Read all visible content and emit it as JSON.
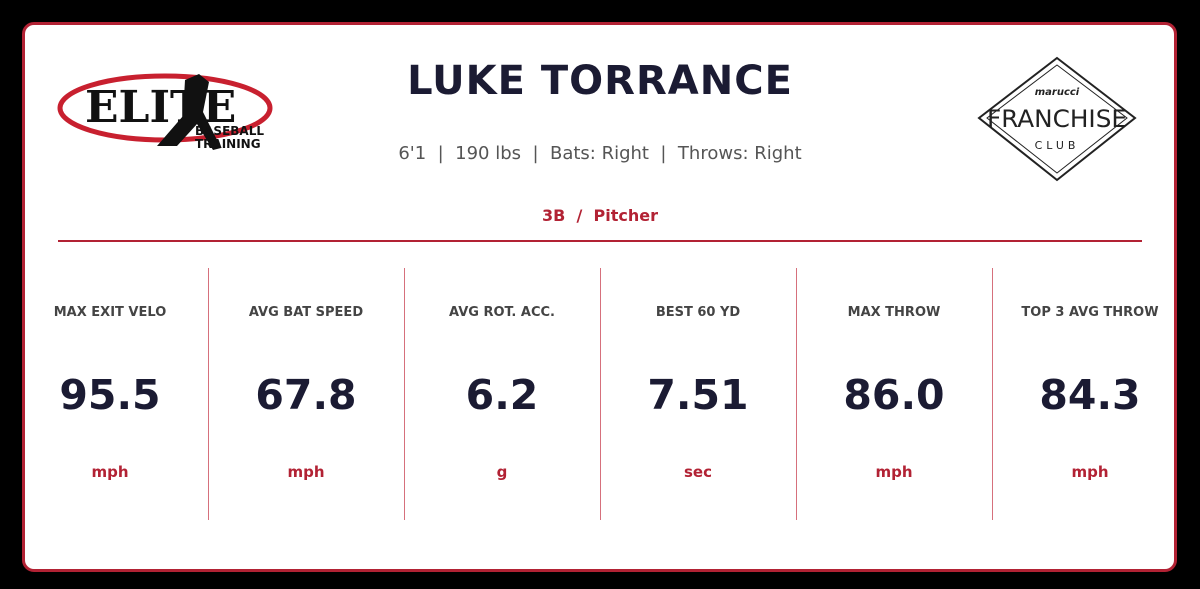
{
  "header": {
    "name": "LUKE TORRANCE",
    "details": "6'1  |  190 lbs  |  Bats: Right  |  Throws: Right",
    "positions": "3B  /  Pitcher"
  },
  "logos": {
    "left": {
      "main": "ELITE",
      "line1": "BASEBALL",
      "line2": "TRAINING"
    },
    "right": {
      "top": "marucci",
      "main": "FRANCHISE",
      "bottom": "CLUB"
    }
  },
  "stats": [
    {
      "label": "MAX EXIT VELO",
      "value": "95.5",
      "unit": "mph"
    },
    {
      "label": "AVG BAT SPEED",
      "value": "67.8",
      "unit": "mph"
    },
    {
      "label": "AVG ROT. ACC.",
      "value": "6.2",
      "unit": "g"
    },
    {
      "label": "BEST 60 YD",
      "value": "7.51",
      "unit": "sec"
    },
    {
      "label": "MAX THROW",
      "value": "86.0",
      "unit": "mph"
    },
    {
      "label": "TOP 3 AVG THROW",
      "value": "84.3",
      "unit": "mph"
    }
  ]
}
